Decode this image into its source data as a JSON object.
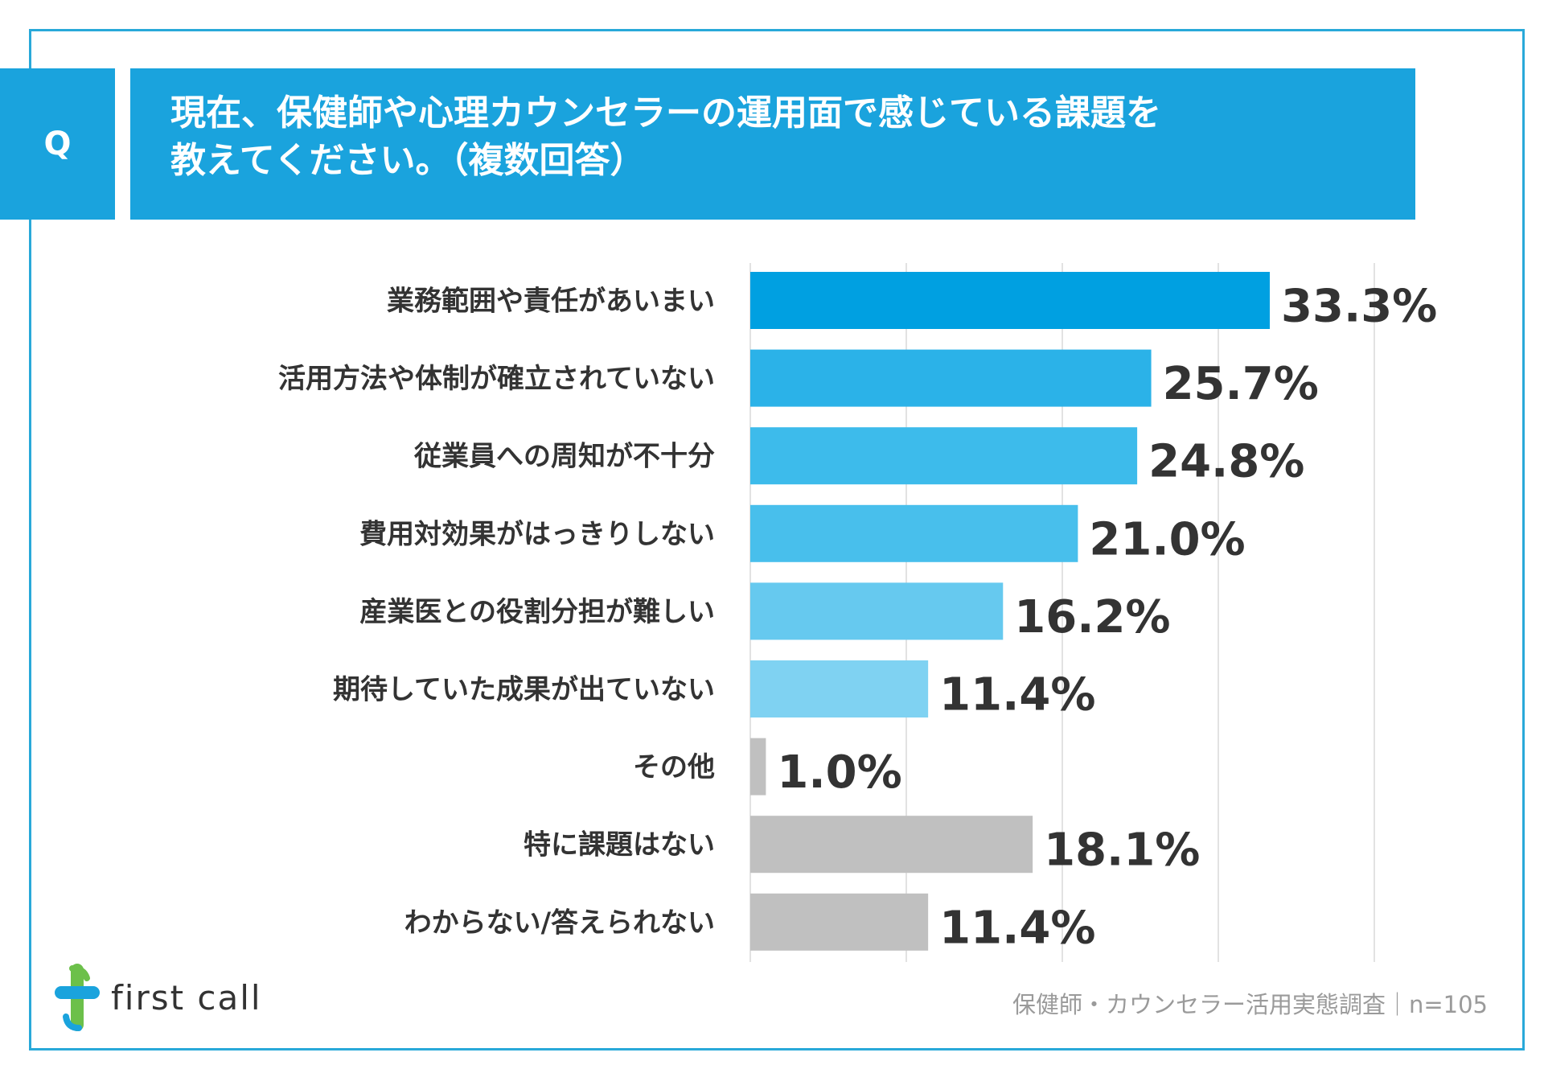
{
  "question": {
    "badge": "Q",
    "line1": "現在、保健師や心理カウンセラーの運用面で感じている課題を",
    "line2": "教えてください。（複数回答）"
  },
  "chart_data": {
    "type": "bar",
    "orientation": "horizontal",
    "categories": [
      "業務範囲や責任があいまい",
      "活用方法や体制が確立されていない",
      "従業員への周知が不十分",
      "費用対効果がはっきりしない",
      "産業医との役割分担が難しい",
      "期待していた成果が出ていない",
      "その他",
      "特に課題はない",
      "わからない/答えられない"
    ],
    "values": [
      33.3,
      25.7,
      24.8,
      21.0,
      16.2,
      11.4,
      1.0,
      18.1,
      11.4
    ],
    "value_labels": [
      "33.3%",
      "25.7%",
      "24.8%",
      "21.0%",
      "16.2%",
      "11.4%",
      "1.0%",
      "18.1%",
      "11.4%"
    ],
    "colors": [
      "#00a0e1",
      "#2bb2e8",
      "#3dbbeb",
      "#48bfec",
      "#66c9ef",
      "#7fd2f2",
      "#c0c0c0",
      "#c0c0c0",
      "#c0c0c0"
    ],
    "xlim": [
      0,
      40
    ],
    "gridlines": [
      0,
      10,
      20,
      30,
      40
    ],
    "grid": true,
    "unit": "%"
  },
  "footer": {
    "logo_text": "first call",
    "note": "保健師・カウンセラー活用実態調査｜n=105"
  },
  "colors": {
    "frame": "#29a9d9",
    "banner": "#1aa3dd",
    "logo_blue": "#1aa3dd",
    "logo_green": "#6cc04a"
  }
}
